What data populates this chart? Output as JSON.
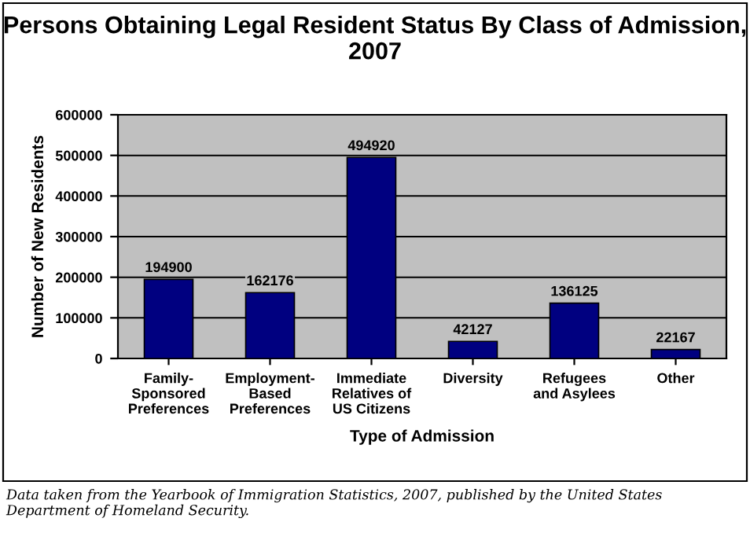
{
  "chart_data": {
    "type": "bar",
    "title": "Persons Obtaining Legal Resident Status By Class of Admission, 2007",
    "xlabel": "Type of Admission",
    "ylabel": "Number of New Residents",
    "categories": [
      "Family-\nSponsored\nPreferences",
      "Employment-\nBased\nPreferences",
      "Immediate\nRelatives of\nUS Citizens",
      "Diversity",
      "Refugees\nand Asylees",
      "Other"
    ],
    "values": [
      194900,
      162176,
      494920,
      42127,
      136125,
      22167
    ],
    "color": "#000080",
    "data_labels": true,
    "ylim": [
      0,
      600000
    ],
    "yticks": [
      0,
      100000,
      200000,
      300000,
      400000,
      500000,
      600000
    ],
    "grid": "y",
    "annotations": [
      "Data taken from the Yearbook of Immigration Statistics, 2007, published by the United States Department of Homeland Security."
    ]
  }
}
